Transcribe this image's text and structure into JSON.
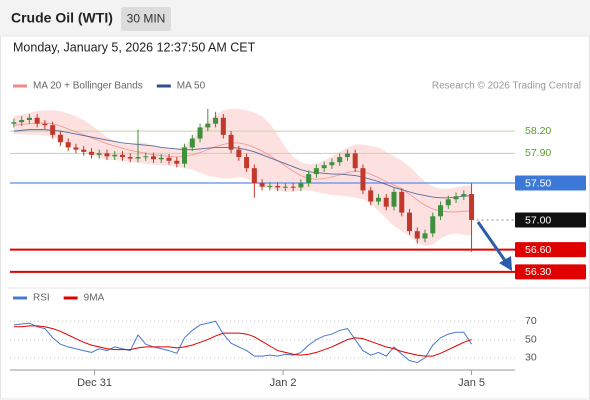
{
  "header": {
    "title": "Crude Oil (WTI)",
    "timeframe": "30 MIN",
    "timestamp": "Monday, January 5, 2026 12:37:50 AM CET",
    "source": "Research © 2026 Trading Central"
  },
  "chart_data": [
    {
      "type": "candlestick",
      "xlim": [
        -0.5,
        64.6
      ],
      "ylim": [
        56.15,
        58.62
      ],
      "up_color": "#3f8f3f",
      "down_color": "#c0392b",
      "open": [
        58.3,
        58.32,
        58.35,
        58.38,
        58.3,
        58.28,
        58.15,
        58.05,
        57.98,
        57.95,
        57.92,
        57.88,
        57.9,
        57.86,
        57.88,
        57.85,
        57.83,
        57.85,
        57.86,
        57.82,
        57.84,
        57.8,
        57.76,
        57.98,
        58.1,
        58.25,
        58.3,
        58.38,
        58.15,
        57.95,
        57.85,
        57.7,
        57.5,
        57.45,
        57.46,
        57.44,
        57.45,
        57.44,
        57.5,
        57.62,
        57.7,
        57.74,
        57.78,
        57.85,
        57.9,
        57.7,
        57.4,
        57.25,
        57.3,
        57.18,
        57.38,
        57.1,
        56.85,
        56.75,
        56.82,
        57.05,
        57.2,
        57.28,
        57.32,
        57.35
      ],
      "high": [
        58.37,
        58.4,
        58.43,
        58.43,
        58.35,
        58.33,
        58.2,
        58.1,
        58.03,
        58.0,
        57.97,
        57.95,
        57.95,
        57.93,
        57.93,
        57.9,
        58.22,
        57.91,
        57.91,
        57.89,
        57.89,
        57.85,
        58.03,
        58.15,
        58.3,
        58.5,
        58.46,
        58.43,
        58.2,
        58.0,
        57.9,
        57.75,
        57.55,
        57.51,
        57.51,
        57.5,
        57.5,
        57.55,
        57.67,
        57.75,
        57.79,
        57.83,
        57.9,
        57.95,
        57.95,
        57.75,
        57.45,
        57.35,
        57.35,
        57.43,
        57.43,
        57.15,
        56.9,
        56.87,
        57.1,
        57.25,
        57.33,
        57.37,
        57.4,
        57.5
      ],
      "low": [
        58.25,
        58.27,
        58.3,
        58.25,
        58.23,
        58.1,
        58.0,
        57.93,
        57.9,
        57.87,
        57.83,
        57.83,
        57.81,
        57.81,
        57.8,
        57.78,
        57.78,
        57.8,
        57.77,
        57.77,
        57.75,
        57.71,
        57.71,
        57.93,
        58.05,
        58.2,
        58.25,
        58.1,
        57.9,
        57.8,
        57.65,
        57.3,
        57.4,
        57.4,
        57.39,
        57.39,
        57.39,
        57.39,
        57.45,
        57.57,
        57.65,
        57.69,
        57.73,
        57.8,
        57.65,
        57.35,
        57.2,
        57.2,
        57.13,
        57.13,
        57.05,
        56.8,
        56.68,
        56.7,
        56.77,
        57.0,
        57.15,
        57.23,
        57.27,
        56.57
      ],
      "close": [
        58.32,
        58.35,
        58.38,
        58.3,
        58.28,
        58.15,
        58.05,
        57.98,
        57.95,
        57.92,
        57.88,
        57.9,
        57.86,
        57.88,
        57.85,
        57.83,
        57.85,
        57.86,
        57.82,
        57.84,
        57.8,
        57.76,
        57.98,
        58.1,
        58.25,
        58.3,
        58.38,
        58.15,
        57.95,
        57.85,
        57.7,
        57.5,
        57.45,
        57.46,
        57.44,
        57.45,
        57.44,
        57.5,
        57.62,
        57.7,
        57.74,
        57.78,
        57.85,
        57.9,
        57.7,
        57.4,
        57.25,
        57.3,
        57.18,
        57.38,
        57.1,
        56.85,
        56.75,
        56.82,
        57.05,
        57.2,
        57.28,
        57.32,
        57.35,
        57.0
      ],
      "series": [
        {
          "name": "MA 20 + Bollinger Bands",
          "color": "#f08a8a",
          "band_color": "#fde0e0",
          "values": [
            58.28,
            58.29,
            58.3,
            58.31,
            58.31,
            58.3,
            58.27,
            58.23,
            58.19,
            58.15,
            58.11,
            58.07,
            58.03,
            58.0,
            57.97,
            57.94,
            57.92,
            57.9,
            57.88,
            57.87,
            57.86,
            57.85,
            57.86,
            57.88,
            57.91,
            57.95,
            57.99,
            58.02,
            58.04,
            58.04,
            58.02,
            57.98,
            57.93,
            57.87,
            57.8,
            57.73,
            57.66,
            57.6,
            57.56,
            57.55,
            57.56,
            57.58,
            57.61,
            57.64,
            57.66,
            57.65,
            57.62,
            57.57,
            57.52,
            57.47,
            57.42,
            57.35,
            57.27,
            57.2,
            57.15,
            57.12,
            57.11,
            57.11,
            57.12,
            57.12
          ],
          "upper": [
            58.4,
            58.42,
            58.45,
            58.47,
            58.48,
            58.48,
            58.47,
            58.44,
            58.4,
            58.35,
            58.28,
            58.2,
            58.12,
            58.06,
            58.03,
            58.02,
            58.05,
            58.04,
            58.0,
            57.98,
            57.97,
            57.96,
            58.0,
            58.1,
            58.22,
            58.33,
            58.42,
            58.48,
            58.5,
            58.5,
            58.48,
            58.45,
            58.4,
            58.3,
            58.15,
            57.98,
            57.85,
            57.78,
            57.75,
            57.76,
            57.8,
            57.86,
            57.92,
            57.98,
            58.02,
            58.02,
            58.0,
            57.98,
            57.92,
            57.86,
            57.8,
            57.72,
            57.62,
            57.52,
            57.45,
            57.42,
            57.42,
            57.44,
            57.46,
            57.47
          ],
          "lower": [
            58.16,
            58.16,
            58.15,
            58.15,
            58.14,
            58.12,
            58.07,
            58.02,
            57.96,
            57.93,
            57.88,
            57.84,
            57.82,
            57.81,
            57.8,
            57.79,
            57.77,
            57.76,
            57.75,
            57.74,
            57.73,
            57.72,
            57.7,
            57.68,
            57.64,
            57.6,
            57.58,
            57.56,
            57.56,
            57.58,
            57.56,
            57.51,
            57.46,
            57.42,
            57.4,
            57.38,
            57.38,
            57.4,
            57.4,
            57.38,
            57.36,
            57.34,
            57.33,
            57.32,
            57.3,
            57.28,
            57.22,
            57.12,
            57.02,
            56.92,
            56.85,
            56.78,
            56.7,
            56.65,
            56.67,
            56.75,
            56.8,
            56.82,
            56.8,
            56.79
          ]
        },
        {
          "name": "MA 50",
          "color": "#2f4f8f",
          "values": [
            58.2,
            58.21,
            58.22,
            58.22,
            58.22,
            58.21,
            58.2,
            58.18,
            58.16,
            58.14,
            58.12,
            58.1,
            58.08,
            58.06,
            58.04,
            58.03,
            58.02,
            58.01,
            58.0,
            57.98,
            57.97,
            57.96,
            57.95,
            57.95,
            57.96,
            57.97,
            57.98,
            57.98,
            57.98,
            57.97,
            57.95,
            57.92,
            57.88,
            57.84,
            57.8,
            57.76,
            57.72,
            57.68,
            57.65,
            57.64,
            57.63,
            57.62,
            57.62,
            57.61,
            57.6,
            57.58,
            57.55,
            57.52,
            57.48,
            57.44,
            57.41,
            57.38,
            57.35,
            57.33,
            57.31,
            57.3,
            57.3,
            57.31,
            57.32,
            57.33
          ]
        }
      ],
      "levels": [
        {
          "value": 58.2,
          "label": "58.20",
          "color": "#5d9b2c",
          "line_color": "#bcd9a3",
          "box": false
        },
        {
          "value": 57.9,
          "label": "57.90",
          "color": "#5d9b2c",
          "line_color": "#bcd9a3",
          "box": false
        },
        {
          "value": 57.5,
          "label": "57.50",
          "color": "#3b78d8",
          "line_color": "#5b8def",
          "box": true
        },
        {
          "value": 57.0,
          "label": "57.00",
          "color": "#111111",
          "line_color": "#888888",
          "box": true,
          "dotted": true
        },
        {
          "value": 56.6,
          "label": "56.60",
          "color": "#e00000",
          "line_color": "#e00000",
          "box": true
        },
        {
          "value": 56.3,
          "label": "56.30",
          "color": "#e00000",
          "line_color": "#e00000",
          "box": true
        }
      ]
    },
    {
      "type": "line",
      "xlim": [
        -0.5,
        64.6
      ],
      "ylim": [
        19,
        79
      ],
      "yticks": [
        70,
        50,
        30
      ],
      "xticks": [
        {
          "value": 10.4,
          "label": "Dec 31"
        },
        {
          "value": 34.7,
          "label": "Jan 2"
        },
        {
          "value": 59,
          "label": "Jan 5"
        }
      ],
      "series": [
        {
          "name": "RSI",
          "color": "#4a78d0",
          "values": [
            66,
            67,
            68,
            64,
            62,
            52,
            45,
            42,
            40,
            38,
            36,
            40,
            38,
            42,
            40,
            38,
            55,
            45,
            42,
            40,
            38,
            35,
            52,
            60,
            66,
            68,
            70,
            56,
            46,
            42,
            38,
            32,
            32,
            33,
            32,
            34,
            33,
            36,
            44,
            50,
            54,
            56,
            60,
            62,
            50,
            38,
            33,
            36,
            32,
            42,
            34,
            27,
            25,
            30,
            44,
            52,
            56,
            58,
            58,
            45
          ]
        },
        {
          "name": "9MA",
          "color": "#e00000",
          "values": [
            64,
            64,
            65,
            65,
            64,
            62,
            59,
            55,
            51,
            47,
            44,
            42,
            40,
            39,
            39,
            39,
            41,
            42,
            42,
            42,
            42,
            41,
            42,
            44,
            47,
            50,
            54,
            57,
            57,
            57,
            56,
            53,
            48,
            43,
            38,
            36,
            34,
            33,
            34,
            36,
            39,
            42,
            46,
            50,
            52,
            51,
            48,
            45,
            42,
            40,
            37,
            35,
            33,
            32,
            32,
            35,
            39,
            43,
            47,
            50
          ]
        }
      ]
    }
  ]
}
